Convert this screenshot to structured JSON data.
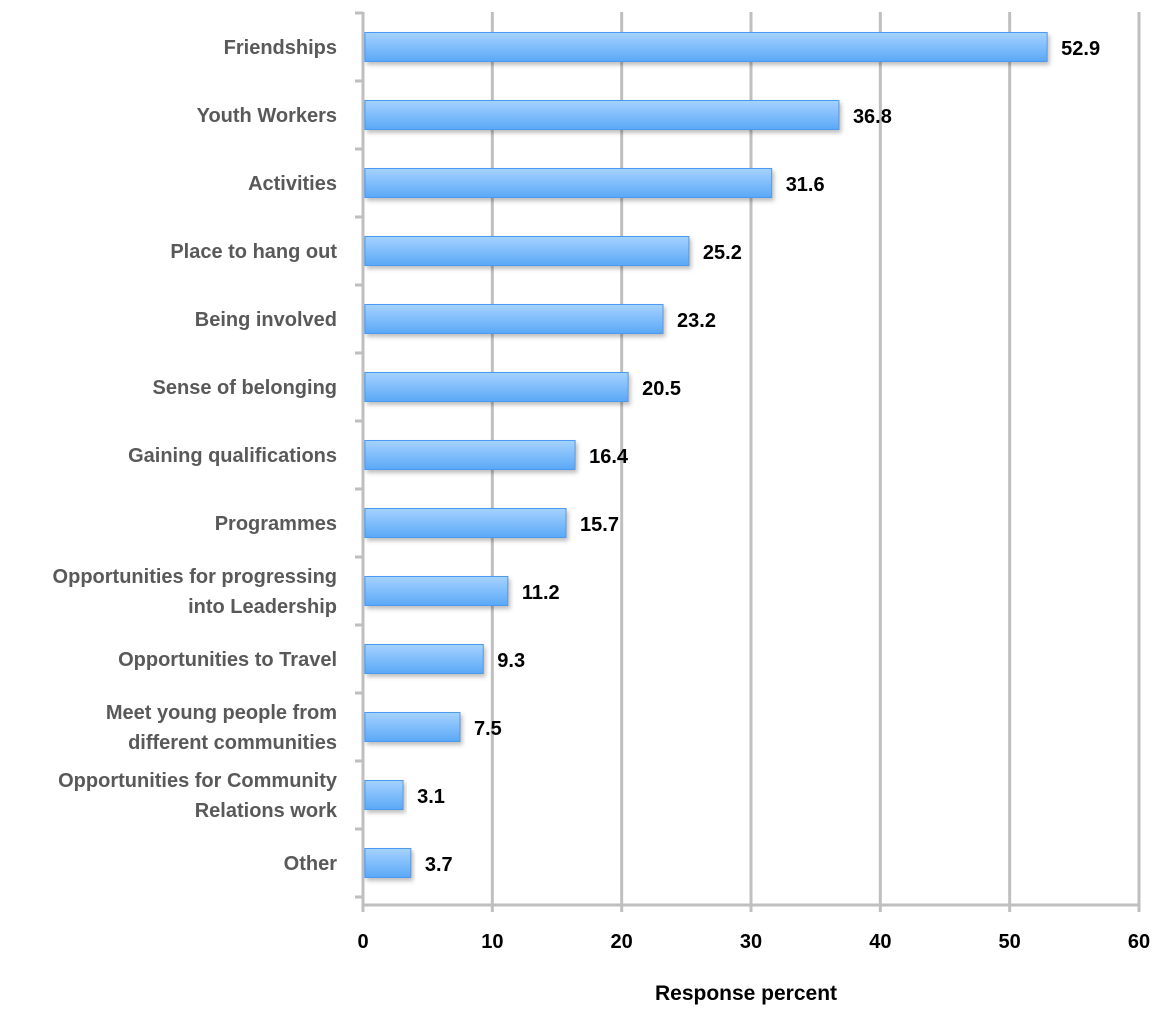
{
  "chart_data": {
    "type": "bar",
    "orientation": "horizontal",
    "categories": [
      "Friendships",
      "Youth Workers",
      "Activities",
      "Place to hang out",
      "Being involved",
      "Sense of belonging",
      "Gaining qualifications",
      "Programmes",
      "Opportunities for progressing into Leadership",
      "Opportunities to Travel",
      "Meet young people from different communities",
      "Opportunities for Community Relations work",
      "Other"
    ],
    "category_lines": [
      [
        "Friendships"
      ],
      [
        "Youth Workers"
      ],
      [
        "Activities"
      ],
      [
        "Place to hang out"
      ],
      [
        "Being involved"
      ],
      [
        "Sense of belonging"
      ],
      [
        "Gaining qualifications"
      ],
      [
        "Programmes"
      ],
      [
        "Opportunities for progressing",
        "into Leadership"
      ],
      [
        "Opportunities to Travel"
      ],
      [
        "Meet young people from",
        "different communities"
      ],
      [
        "Opportunities for Community",
        "Relations work"
      ],
      [
        "Other"
      ]
    ],
    "values": [
      52.9,
      36.8,
      31.6,
      25.2,
      23.2,
      20.5,
      16.4,
      15.7,
      11.2,
      9.3,
      7.5,
      3.1,
      3.7
    ],
    "value_labels": [
      "52.9",
      "36.8",
      "31.6",
      "25.2",
      "23.2",
      "20.5",
      "16.4",
      "15.7",
      "11.2",
      "9.3",
      "7.5",
      "3.1",
      "3.7"
    ],
    "xlim": [
      0,
      60
    ],
    "xticks": [
      0,
      10,
      20,
      30,
      40,
      50,
      60
    ],
    "xlabel": "Response percent",
    "ylabel": "",
    "title": "",
    "grid": true,
    "legend": "none",
    "colors": {
      "bar_top": "#a6d2ff",
      "bar_bottom": "#5aa8f7",
      "bar_edge": "#4a9af0",
      "grid": "#bfbfbf",
      "category_text": "#595959",
      "value_text": "#000000"
    }
  }
}
